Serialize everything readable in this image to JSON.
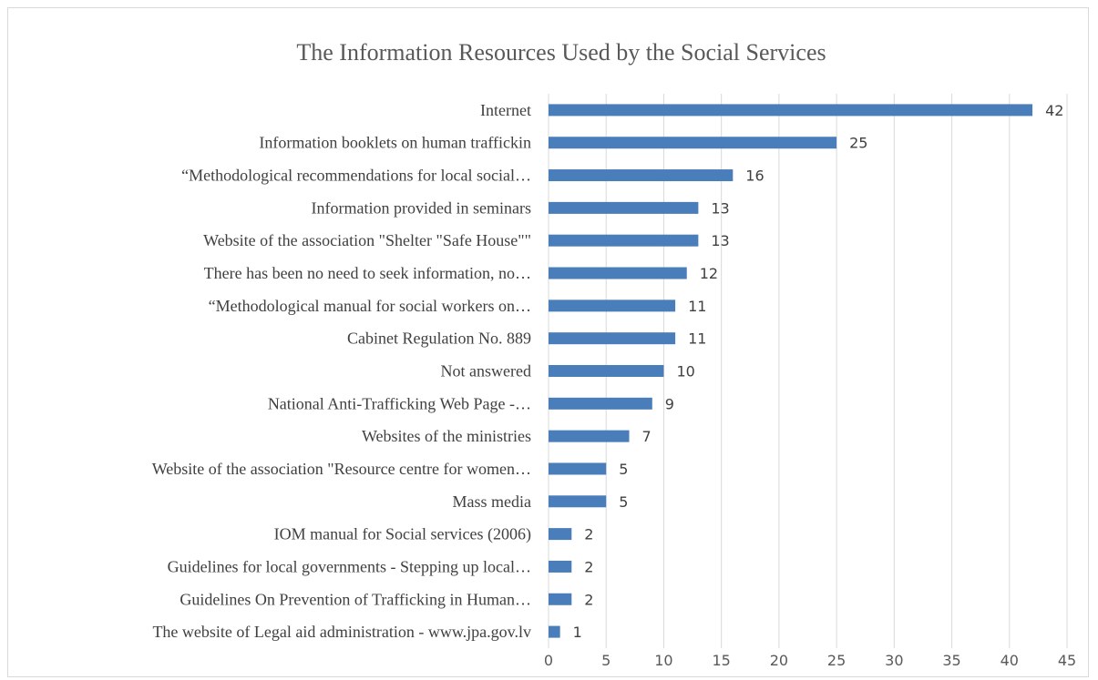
{
  "chart_data": {
    "type": "bar",
    "orientation": "horizontal",
    "title": "The Information Resources Used by the Social Services",
    "categories": [
      "Internet",
      "Information booklets on human traffickin",
      "“Methodological recommendations for local social…",
      "Information provided in seminars",
      "Website of the association \"Shelter \"Safe House\"\"",
      "There has been no need to seek information, no…",
      "“Methodological manual for social workers on…",
      "Cabinet Regulation No. 889",
      "Not answered",
      "National Anti-Trafficking Web Page -…",
      "Websites of the ministries",
      "Website of the association \"Resource centre for women…",
      "Mass media",
      "IOM manual for Social services (2006)",
      "Guidelines for local governments - Stepping up local…",
      "Guidelines On Prevention of Trafficking in Human…",
      "The website of Legal aid administration - www.jpa.gov.lv"
    ],
    "values": [
      42,
      25,
      16,
      13,
      13,
      12,
      11,
      11,
      10,
      9,
      7,
      5,
      5,
      2,
      2,
      2,
      1
    ],
    "xlim": [
      0,
      45
    ],
    "xticks": [
      "0",
      "5",
      "10",
      "15",
      "20",
      "25",
      "30",
      "35",
      "40",
      "45"
    ],
    "grid": "vertical",
    "legend": "none",
    "bar_color": "#4a7ebb"
  }
}
